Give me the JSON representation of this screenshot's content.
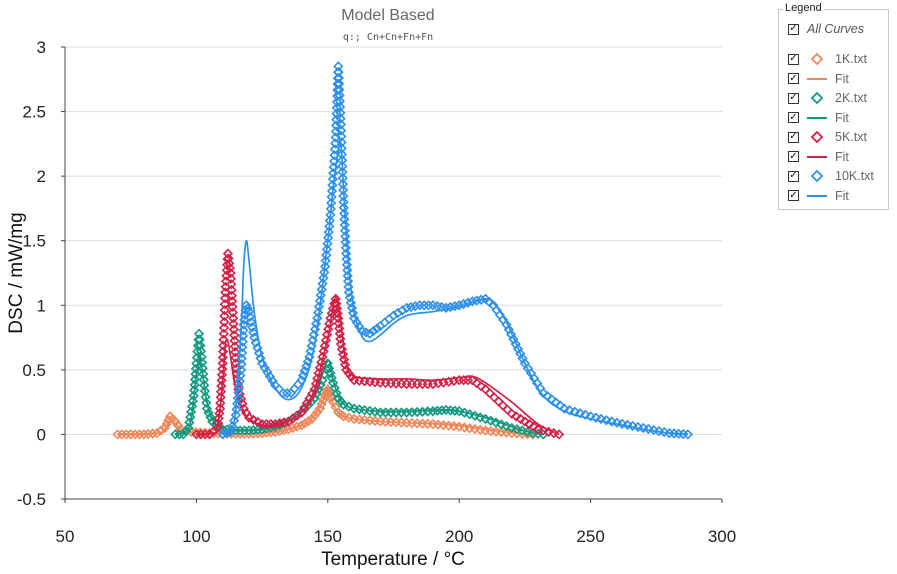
{
  "chart_data": {
    "type": "line",
    "title": "Model Based",
    "subtitle": "q:; Cn+Cn+Fn+Fn",
    "xlabel": "Temperature / °C",
    "ylabel": "DSC / mW/mg",
    "xlim": [
      50,
      300
    ],
    "ylim": [
      -0.5,
      3
    ],
    "xticks": [
      50,
      100,
      150,
      200,
      250,
      300
    ],
    "yticks": [
      -0.5,
      0,
      0.5,
      1,
      1.5,
      2,
      2.5,
      3
    ],
    "xtick_labels": [
      "50",
      "100",
      "150",
      "200",
      "250",
      "300"
    ],
    "ytick_labels": [
      "-0.5",
      "0",
      "0.5",
      "1",
      "1.5",
      "2",
      "2.5",
      "3"
    ],
    "grid": "horizontal",
    "legend_placement": "outside-top-right",
    "series": [
      {
        "name": "1K.txt",
        "kind": "measured",
        "marker": "diamond",
        "color": "#F0875A",
        "points": [
          [
            70,
            0
          ],
          [
            75,
            0
          ],
          [
            80,
            0
          ],
          [
            85,
            0.01
          ],
          [
            88,
            0.05
          ],
          [
            90,
            0.14
          ],
          [
            92,
            0.1
          ],
          [
            94,
            0.04
          ],
          [
            98,
            0.02
          ],
          [
            105,
            0.01
          ],
          [
            110,
            0.005
          ],
          [
            115,
            0.005
          ],
          [
            120,
            0.005
          ],
          [
            125,
            0.01
          ],
          [
            130,
            0.02
          ],
          [
            135,
            0.04
          ],
          [
            140,
            0.07
          ],
          [
            144,
            0.12
          ],
          [
            147,
            0.2
          ],
          [
            149,
            0.3
          ],
          [
            150,
            0.35
          ],
          [
            152,
            0.25
          ],
          [
            154,
            0.17
          ],
          [
            156,
            0.14
          ],
          [
            160,
            0.12
          ],
          [
            170,
            0.1
          ],
          [
            180,
            0.09
          ],
          [
            190,
            0.08
          ],
          [
            200,
            0.06
          ],
          [
            210,
            0.03
          ],
          [
            220,
            0.01
          ],
          [
            228,
            0
          ]
        ]
      },
      {
        "name": "Fit",
        "kind": "fit",
        "color": "#F0875A",
        "points": [
          [
            70,
            0
          ],
          [
            85,
            0.01
          ],
          [
            88,
            0.04
          ],
          [
            90,
            0.1
          ],
          [
            92,
            0.08
          ],
          [
            95,
            0.03
          ],
          [
            100,
            0.01
          ],
          [
            110,
            0.005
          ],
          [
            120,
            0.005
          ],
          [
            130,
            0.02
          ],
          [
            140,
            0.07
          ],
          [
            145,
            0.15
          ],
          [
            149,
            0.3
          ],
          [
            150,
            0.36
          ],
          [
            152,
            0.24
          ],
          [
            155,
            0.15
          ],
          [
            160,
            0.12
          ],
          [
            170,
            0.1
          ],
          [
            180,
            0.09
          ],
          [
            190,
            0.085
          ],
          [
            200,
            0.07
          ],
          [
            210,
            0.04
          ],
          [
            220,
            0.015
          ],
          [
            228,
            0
          ]
        ]
      },
      {
        "name": "2K.txt",
        "kind": "measured",
        "marker": "diamond",
        "color": "#119980",
        "points": [
          [
            92,
            0
          ],
          [
            95,
            0
          ],
          [
            97,
            0.05
          ],
          [
            99,
            0.3
          ],
          [
            100,
            0.55
          ],
          [
            101,
            0.78
          ],
          [
            102,
            0.6
          ],
          [
            103,
            0.38
          ],
          [
            104,
            0.2
          ],
          [
            106,
            0.1
          ],
          [
            110,
            0.04
          ],
          [
            115,
            0.03
          ],
          [
            120,
            0.03
          ],
          [
            125,
            0.04
          ],
          [
            130,
            0.06
          ],
          [
            135,
            0.1
          ],
          [
            140,
            0.17
          ],
          [
            145,
            0.28
          ],
          [
            148,
            0.42
          ],
          [
            150,
            0.55
          ],
          [
            152,
            0.4
          ],
          [
            154,
            0.28
          ],
          [
            156,
            0.23
          ],
          [
            160,
            0.2
          ],
          [
            170,
            0.17
          ],
          [
            180,
            0.17
          ],
          [
            190,
            0.18
          ],
          [
            195,
            0.19
          ],
          [
            200,
            0.18
          ],
          [
            210,
            0.12
          ],
          [
            220,
            0.05
          ],
          [
            228,
            0.01
          ],
          [
            232,
            0
          ]
        ]
      },
      {
        "name": "Fit",
        "kind": "fit",
        "color": "#119980",
        "points": [
          [
            92,
            0
          ],
          [
            96,
            0.02
          ],
          [
            98,
            0.12
          ],
          [
            100,
            0.45
          ],
          [
            101,
            0.6
          ],
          [
            102,
            0.52
          ],
          [
            104,
            0.25
          ],
          [
            106,
            0.12
          ],
          [
            110,
            0.05
          ],
          [
            120,
            0.03
          ],
          [
            130,
            0.06
          ],
          [
            140,
            0.18
          ],
          [
            145,
            0.3
          ],
          [
            150,
            0.57
          ],
          [
            152,
            0.42
          ],
          [
            155,
            0.26
          ],
          [
            160,
            0.2
          ],
          [
            170,
            0.18
          ],
          [
            180,
            0.18
          ],
          [
            190,
            0.19
          ],
          [
            195,
            0.19
          ],
          [
            200,
            0.18
          ],
          [
            210,
            0.13
          ],
          [
            220,
            0.06
          ],
          [
            228,
            0.01
          ],
          [
            232,
            0
          ]
        ]
      },
      {
        "name": "5K.txt",
        "kind": "measured",
        "marker": "diamond",
        "color": "#D42046",
        "points": [
          [
            100,
            0
          ],
          [
            105,
            0
          ],
          [
            108,
            0.05
          ],
          [
            109,
            0.2
          ],
          [
            110,
            0.55
          ],
          [
            111,
            1.1
          ],
          [
            112,
            1.4
          ],
          [
            113,
            1.25
          ],
          [
            114,
            0.9
          ],
          [
            115,
            0.55
          ],
          [
            116,
            0.35
          ],
          [
            118,
            0.2
          ],
          [
            120,
            0.13
          ],
          [
            125,
            0.08
          ],
          [
            130,
            0.08
          ],
          [
            135,
            0.1
          ],
          [
            140,
            0.17
          ],
          [
            145,
            0.35
          ],
          [
            148,
            0.6
          ],
          [
            151,
            0.9
          ],
          [
            153,
            1.05
          ],
          [
            154,
            0.9
          ],
          [
            155,
            0.7
          ],
          [
            157,
            0.5
          ],
          [
            160,
            0.42
          ],
          [
            170,
            0.4
          ],
          [
            180,
            0.39
          ],
          [
            190,
            0.39
          ],
          [
            200,
            0.42
          ],
          [
            205,
            0.42
          ],
          [
            210,
            0.35
          ],
          [
            220,
            0.16
          ],
          [
            230,
            0.04
          ],
          [
            238,
            0
          ]
        ]
      },
      {
        "name": "Fit",
        "kind": "fit",
        "color": "#D42046",
        "points": [
          [
            100,
            0
          ],
          [
            106,
            0.01
          ],
          [
            108,
            0.05
          ],
          [
            110,
            0.4
          ],
          [
            111,
            0.7
          ],
          [
            112,
            0.72
          ],
          [
            113,
            0.6
          ],
          [
            115,
            0.35
          ],
          [
            118,
            0.18
          ],
          [
            120,
            0.12
          ],
          [
            125,
            0.07
          ],
          [
            130,
            0.07
          ],
          [
            135,
            0.1
          ],
          [
            140,
            0.17
          ],
          [
            145,
            0.35
          ],
          [
            150,
            0.75
          ],
          [
            153,
            1.07
          ],
          [
            155,
            0.85
          ],
          [
            157,
            0.55
          ],
          [
            160,
            0.45
          ],
          [
            170,
            0.43
          ],
          [
            180,
            0.43
          ],
          [
            190,
            0.42
          ],
          [
            200,
            0.44
          ],
          [
            205,
            0.45
          ],
          [
            210,
            0.4
          ],
          [
            220,
            0.25
          ],
          [
            230,
            0.08
          ],
          [
            238,
            0
          ]
        ]
      },
      {
        "name": "10K.txt",
        "kind": "measured",
        "marker": "diamond",
        "color": "#2D90E8",
        "points": [
          [
            110,
            0
          ],
          [
            113,
            0.02
          ],
          [
            115,
            0.15
          ],
          [
            117,
            0.5
          ],
          [
            118,
            0.85
          ],
          [
            119,
            1.0
          ],
          [
            120,
            0.95
          ],
          [
            122,
            0.75
          ],
          [
            125,
            0.55
          ],
          [
            130,
            0.38
          ],
          [
            133,
            0.32
          ],
          [
            136,
            0.32
          ],
          [
            140,
            0.42
          ],
          [
            143,
            0.6
          ],
          [
            146,
            0.9
          ],
          [
            149,
            1.3
          ],
          [
            151,
            1.7
          ],
          [
            153,
            2.3
          ],
          [
            154,
            2.85
          ],
          [
            155,
            2.4
          ],
          [
            156,
            1.8
          ],
          [
            157,
            1.4
          ],
          [
            158,
            1.1
          ],
          [
            160,
            0.9
          ],
          [
            163,
            0.8
          ],
          [
            166,
            0.78
          ],
          [
            170,
            0.84
          ],
          [
            175,
            0.92
          ],
          [
            180,
            0.98
          ],
          [
            185,
            1.0
          ],
          [
            190,
            1.0
          ],
          [
            195,
            0.98
          ],
          [
            200,
            1.0
          ],
          [
            205,
            1.03
          ],
          [
            210,
            1.05
          ],
          [
            213,
            1.0
          ],
          [
            218,
            0.85
          ],
          [
            225,
            0.55
          ],
          [
            232,
            0.32
          ],
          [
            240,
            0.2
          ],
          [
            250,
            0.14
          ],
          [
            260,
            0.09
          ],
          [
            270,
            0.05
          ],
          [
            280,
            0.01
          ],
          [
            287,
            0
          ]
        ]
      },
      {
        "name": "Fit",
        "kind": "fit",
        "color": "#2D90E8",
        "points": [
          [
            110,
            0
          ],
          [
            113,
            0.01
          ],
          [
            115,
            0.2
          ],
          [
            117,
            0.8
          ],
          [
            118,
            1.3
          ],
          [
            119,
            1.5
          ],
          [
            120,
            1.35
          ],
          [
            122,
            0.95
          ],
          [
            125,
            0.6
          ],
          [
            130,
            0.36
          ],
          [
            135,
            0.27
          ],
          [
            140,
            0.36
          ],
          [
            145,
            0.7
          ],
          [
            150,
            1.5
          ],
          [
            152,
            1.9
          ],
          [
            154,
            2.2
          ],
          [
            155,
            2.25
          ],
          [
            156,
            1.9
          ],
          [
            158,
            1.3
          ],
          [
            160,
            0.95
          ],
          [
            163,
            0.76
          ],
          [
            166,
            0.72
          ],
          [
            170,
            0.77
          ],
          [
            175,
            0.86
          ],
          [
            180,
            0.92
          ],
          [
            185,
            0.94
          ],
          [
            190,
            0.95
          ],
          [
            200,
            0.99
          ],
          [
            205,
            1.02
          ],
          [
            210,
            1.05
          ],
          [
            213,
            1.02
          ],
          [
            218,
            0.87
          ],
          [
            225,
            0.55
          ],
          [
            232,
            0.3
          ],
          [
            240,
            0.18
          ],
          [
            250,
            0.12
          ],
          [
            260,
            0.08
          ],
          [
            270,
            0.04
          ],
          [
            280,
            0.01
          ],
          [
            287,
            0
          ]
        ]
      }
    ]
  },
  "legend": {
    "title": "Legend",
    "all_label": "All Curves",
    "items": [
      {
        "label": "1K.txt",
        "kind": "measured",
        "color": "#F0875A"
      },
      {
        "label": "Fit",
        "kind": "fit",
        "color": "#F0875A"
      },
      {
        "label": "2K.txt",
        "kind": "measured",
        "color": "#119980"
      },
      {
        "label": "Fit",
        "kind": "fit",
        "color": "#119980"
      },
      {
        "label": "5K.txt",
        "kind": "measured",
        "color": "#D42046"
      },
      {
        "label": "Fit",
        "kind": "fit",
        "color": "#D42046"
      },
      {
        "label": "10K.txt",
        "kind": "measured",
        "color": "#2D90E8"
      },
      {
        "label": "Fit",
        "kind": "fit",
        "color": "#2D90E8"
      }
    ]
  }
}
